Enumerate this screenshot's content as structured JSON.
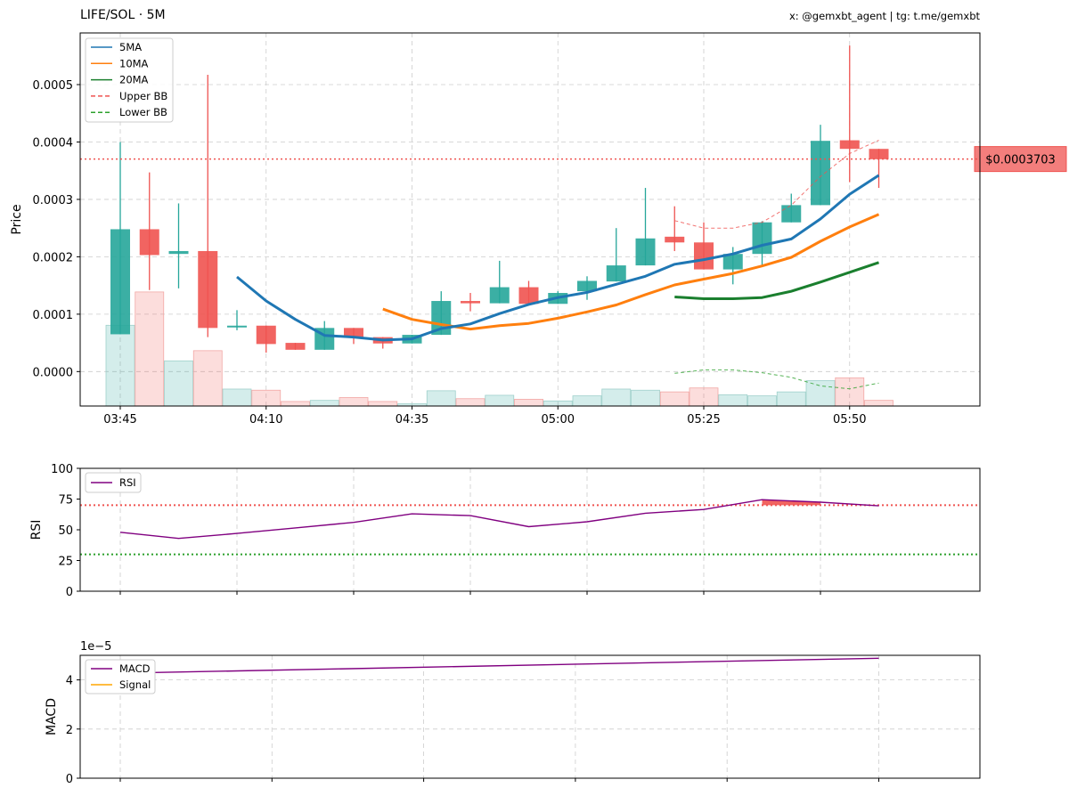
{
  "header": {
    "title": "LIFE/SOL · 5M",
    "credit": "x: @gemxbt_agent | tg: t.me/gemxbt"
  },
  "colors": {
    "up": "#26a69a",
    "down": "#ef5350",
    "ma5": "#1f77b4",
    "ma10": "#ff7f0e",
    "ma20": "#1a7f2e",
    "upper_bb": "#ef5350",
    "lower_bb": "#2ca02c",
    "rsi": "#800080",
    "macd": "#800080",
    "signal": "#ffa500",
    "grid": "#cccccc"
  },
  "chart_data": [
    {
      "type": "candlestick",
      "name": "price",
      "ylabel": "Price",
      "ylim": [
        -6e-05,
        0.00059
      ],
      "yticks": [
        "0.0000",
        "0.0001",
        "0.0002",
        "0.0003",
        "0.0004",
        "0.0005"
      ],
      "ytick_values": [
        0,
        0.0001,
        0.0002,
        0.0003,
        0.0004,
        0.0005
      ],
      "xtick_labels": [
        "03:45",
        "04:10",
        "04:35",
        "05:00",
        "05:25",
        "05:50"
      ],
      "xtick_index": [
        0,
        5,
        10,
        15,
        20,
        25
      ],
      "grid": true,
      "legend_position": "top-left",
      "legend": [
        {
          "label": "5MA",
          "style": "solid",
          "color_key": "ma5"
        },
        {
          "label": "10MA",
          "style": "solid",
          "color_key": "ma10"
        },
        {
          "label": "20MA",
          "style": "solid",
          "color_key": "ma20"
        },
        {
          "label": "Upper BB",
          "style": "dashed",
          "color_key": "upper_bb"
        },
        {
          "label": "Lower BB",
          "style": "dashed",
          "color_key": "lower_bb"
        }
      ],
      "current_price": 0.0003703,
      "current_price_label": "$0.0003703",
      "volume_max": 0.000205,
      "candles": [
        {
          "o": 6.5e-05,
          "h": 0.0004,
          "l": 6.5e-05,
          "c": 0.000248,
          "v": 0.000143
        },
        {
          "o": 0.000248,
          "h": 0.000347,
          "l": 0.000142,
          "c": 0.000203,
          "v": 0.000202
        },
        {
          "o": 0.000205,
          "h": 0.000293,
          "l": 0.000145,
          "c": 0.00021,
          "v": 8e-05
        },
        {
          "o": 0.00021,
          "h": 0.000517,
          "l": 6e-05,
          "c": 7.6e-05,
          "v": 9.8e-05
        },
        {
          "o": 7.7e-05,
          "h": 0.000107,
          "l": 7.2e-05,
          "c": 8e-05,
          "v": 3e-05
        },
        {
          "o": 8e-05,
          "h": 8e-05,
          "l": 3.3e-05,
          "c": 4.8e-05,
          "v": 2.8e-05
        },
        {
          "o": 5e-05,
          "h": 5e-05,
          "l": 3.8e-05,
          "c": 3.8e-05,
          "v": 8e-06
        },
        {
          "o": 3.8e-05,
          "h": 8.8e-05,
          "l": 3.8e-05,
          "c": 7.6e-05,
          "v": 1e-05
        },
        {
          "o": 7.6e-05,
          "h": 7.6e-05,
          "l": 4.8e-05,
          "c": 6e-05,
          "v": 1.5e-05
        },
        {
          "o": 6e-05,
          "h": 6e-05,
          "l": 4e-05,
          "c": 4.9e-05,
          "v": 8e-06
        },
        {
          "o": 4.9e-05,
          "h": 6.4e-05,
          "l": 4.9e-05,
          "c": 6.4e-05,
          "v": 4e-06
        },
        {
          "o": 6.4e-05,
          "h": 0.00014,
          "l": 6.4e-05,
          "c": 0.000123,
          "v": 2.7e-05
        },
        {
          "o": 0.000123,
          "h": 0.000137,
          "l": 0.000105,
          "c": 0.000119,
          "v": 1.3e-05
        },
        {
          "o": 0.000119,
          "h": 0.000193,
          "l": 0.000119,
          "c": 0.000147,
          "v": 1.9e-05
        },
        {
          "o": 0.000147,
          "h": 0.000158,
          "l": 0.000117,
          "c": 0.000118,
          "v": 1.2e-05
        },
        {
          "o": 0.000118,
          "h": 0.00014,
          "l": 0.000118,
          "c": 0.000137,
          "v": 9e-06
        },
        {
          "o": 0.00014,
          "h": 0.000166,
          "l": 0.000125,
          "c": 0.000158,
          "v": 1.8e-05
        },
        {
          "o": 0.000157,
          "h": 0.00025,
          "l": 0.000157,
          "c": 0.000185,
          "v": 3e-05
        },
        {
          "o": 0.000185,
          "h": 0.00032,
          "l": 0.000185,
          "c": 0.000232,
          "v": 2.8e-05
        },
        {
          "o": 0.000235,
          "h": 0.000288,
          "l": 0.00021,
          "c": 0.000225,
          "v": 2.5e-05
        },
        {
          "o": 0.000225,
          "h": 0.00026,
          "l": 0.000178,
          "c": 0.000178,
          "v": 3.2e-05
        },
        {
          "o": 0.000178,
          "h": 0.000217,
          "l": 0.000152,
          "c": 0.000205,
          "v": 2e-05
        },
        {
          "o": 0.000205,
          "h": 0.000262,
          "l": 0.000183,
          "c": 0.00026,
          "v": 1.8e-05
        },
        {
          "o": 0.00026,
          "h": 0.00031,
          "l": 0.00026,
          "c": 0.00029,
          "v": 2.5e-05
        },
        {
          "o": 0.00029,
          "h": 0.00043,
          "l": 0.00029,
          "c": 0.000402,
          "v": 4.5e-05
        },
        {
          "o": 0.000403,
          "h": 0.000568,
          "l": 0.00033,
          "c": 0.000388,
          "v": 5e-05
        },
        {
          "o": 0.000388,
          "h": 0.000388,
          "l": 0.00032,
          "c": 0.00037,
          "v": 1e-05
        }
      ],
      "ma5": [
        null,
        null,
        null,
        null,
        0.000165,
        0.000123,
        9.1e-05,
        6.3e-05,
        6e-05,
        5.5e-05,
        5.7e-05,
        7.5e-05,
        8.3e-05,
        0.000101,
        0.000117,
        0.000129,
        0.000138,
        0.000152,
        0.000166,
        0.000187,
        0.000195,
        0.000205,
        0.00022,
        0.000231,
        0.000266,
        0.000309,
        0.000342
      ],
      "ma10": [
        null,
        null,
        null,
        null,
        null,
        null,
        null,
        null,
        null,
        0.000109,
        9.1e-05,
        8.2e-05,
        7.4e-05,
        8e-05,
        8.4e-05,
        9.3e-05,
        0.000104,
        0.000116,
        0.000134,
        0.000151,
        0.000161,
        0.000171,
        0.000184,
        0.000199,
        0.000227,
        0.000252,
        0.000274
      ],
      "ma20": [
        null,
        null,
        null,
        null,
        null,
        null,
        null,
        null,
        null,
        null,
        null,
        null,
        null,
        null,
        null,
        null,
        null,
        null,
        null,
        0.00013,
        0.000127,
        0.000127,
        0.000129,
        0.00014,
        0.000156,
        0.000173,
        0.00019
      ],
      "upper_bb": [
        null,
        null,
        null,
        null,
        null,
        null,
        null,
        null,
        null,
        null,
        null,
        null,
        null,
        null,
        null,
        null,
        null,
        null,
        null,
        0.000263,
        0.00025,
        0.00025,
        0.00026,
        0.00029,
        0.00034,
        0.00038,
        0.000403
      ],
      "lower_bb": [
        null,
        null,
        null,
        null,
        null,
        null,
        null,
        null,
        null,
        null,
        null,
        null,
        null,
        null,
        null,
        null,
        null,
        null,
        null,
        -3e-06,
        3e-06,
        3e-06,
        -2e-06,
        -1e-05,
        -2.5e-05,
        -3e-05,
        -2e-05
      ]
    },
    {
      "type": "line",
      "name": "rsi",
      "ylabel": "RSI",
      "ylim": [
        0,
        100
      ],
      "yticks": [
        "0",
        "25",
        "50",
        "75",
        "100"
      ],
      "ytick_values": [
        0,
        25,
        50,
        75,
        100
      ],
      "overbought": 70,
      "oversold": 30,
      "grid": true,
      "legend_position": "top-left",
      "series": [
        {
          "name": "RSI",
          "color_key": "rsi",
          "x": [
            0,
            2,
            4,
            6,
            8,
            10,
            12,
            14,
            16,
            18,
            20,
            22,
            24,
            26
          ],
          "values": [
            48,
            43,
            47,
            51.5,
            56,
            63,
            61.5,
            52.5,
            56.5,
            63.5,
            66.5,
            74.5,
            72.5,
            69.5
          ]
        }
      ]
    },
    {
      "type": "line",
      "name": "macd",
      "ylabel": "MACD",
      "scale_label": "1e−5",
      "ylim": [
        0,
        5
      ],
      "yticks": [
        "0",
        "2",
        "4"
      ],
      "ytick_values": [
        0,
        2,
        4
      ],
      "grid": true,
      "legend_position": "top-left",
      "series": [
        {
          "name": "MACD",
          "color_key": "macd",
          "x": [
            0,
            26
          ],
          "values": [
            4.27,
            4.88
          ]
        },
        {
          "name": "Signal",
          "color_key": "signal",
          "x": [],
          "values": []
        }
      ]
    }
  ]
}
